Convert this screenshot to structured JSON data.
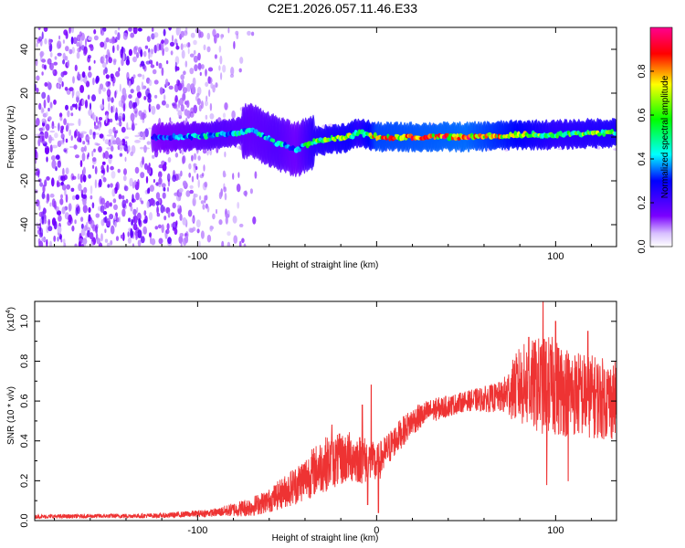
{
  "title": "C2E1.2026.057.11.46.E33",
  "chart_data": [
    {
      "type": "heatmap",
      "title": "C2E1.2026.057.11.46.E33",
      "xlabel": "Height of straight line (km)",
      "ylabel": "Frequency (Hz)",
      "xlim": [
        -191,
        134
      ],
      "ylim": [
        -50,
        50
      ],
      "x_ticks": [
        -100,
        0,
        100
      ],
      "x_tick_labels": [
        "-100",
        "",
        "100"
      ],
      "y_ticks": [
        -40,
        -20,
        0,
        20,
        40
      ],
      "y_tick_labels": [
        "-40",
        "-20",
        "0",
        "20",
        "40"
      ],
      "colorbar": {
        "label": "Normalized spectral amplitude",
        "range": [
          0,
          1
        ],
        "ticks": [
          0.0,
          0.2,
          0.4,
          0.6,
          0.8
        ],
        "tick_labels": [
          "0.0",
          "0.2",
          "0.4",
          "0.6",
          "0.8"
        ],
        "colormap": [
          "#ffffff",
          "#7a00ff",
          "#0000ff",
          "#00ffff",
          "#00ff00",
          "#ffff00",
          "#ff0000",
          "#ff0090"
        ]
      },
      "ridge": [
        {
          "x": -191,
          "f": -2,
          "amp": 0.15
        },
        {
          "x": -140,
          "f": -1,
          "amp": 0.3
        },
        {
          "x": -110,
          "f": 0,
          "amp": 0.45
        },
        {
          "x": -90,
          "f": 1,
          "amp": 0.55
        },
        {
          "x": -70,
          "f": 3,
          "amp": 0.5
        },
        {
          "x": -55,
          "f": -3,
          "amp": 0.55
        },
        {
          "x": -45,
          "f": -6,
          "amp": 0.45
        },
        {
          "x": -35,
          "f": -2,
          "amp": 0.7
        },
        {
          "x": -15,
          "f": 0,
          "amp": 0.8
        },
        {
          "x": -10,
          "f": 2,
          "amp": 0.7
        },
        {
          "x": 0,
          "f": 0,
          "amp": 0.95
        },
        {
          "x": 50,
          "f": 0,
          "amp": 1.0
        },
        {
          "x": 80,
          "f": 1,
          "amp": 0.85
        },
        {
          "x": 100,
          "f": 1,
          "amp": 0.7
        },
        {
          "x": 134,
          "f": 2,
          "amp": 0.75
        }
      ]
    },
    {
      "type": "line",
      "xlabel": "Height of straight line (km)",
      "ylabel": "SNR (10 * v/v)",
      "ylabel_scale": "(x10",
      "ylabel_scale_exp": "4",
      "ylabel_scale_close": ")",
      "xlim": [
        -191,
        134
      ],
      "ylim": [
        0,
        1.1
      ],
      "x_ticks": [
        -100,
        0,
        100
      ],
      "x_tick_labels": [
        "-100",
        "0",
        "100"
      ],
      "y_ticks": [
        0.0,
        0.2,
        0.4,
        0.6,
        0.8,
        1.0
      ],
      "y_tick_labels": [
        "0.0",
        "0.2",
        "0.4",
        "0.6",
        "0.8",
        "1.0"
      ],
      "series": [
        {
          "name": "SNR",
          "color": "#ee3333",
          "trend": [
            {
              "x": -191,
              "y": 0.02,
              "noise": 0.01
            },
            {
              "x": -120,
              "y": 0.025,
              "noise": 0.012
            },
            {
              "x": -90,
              "y": 0.04,
              "noise": 0.02
            },
            {
              "x": -70,
              "y": 0.07,
              "noise": 0.05
            },
            {
              "x": -60,
              "y": 0.1,
              "noise": 0.06
            },
            {
              "x": -45,
              "y": 0.18,
              "noise": 0.1
            },
            {
              "x": -30,
              "y": 0.28,
              "noise": 0.14
            },
            {
              "x": -15,
              "y": 0.32,
              "noise": 0.13
            },
            {
              "x": -5,
              "y": 0.3,
              "noise": 0.12
            },
            {
              "x": 0,
              "y": 0.28,
              "noise": 0.1
            },
            {
              "x": 10,
              "y": 0.4,
              "noise": 0.08
            },
            {
              "x": 20,
              "y": 0.5,
              "noise": 0.07
            },
            {
              "x": 30,
              "y": 0.55,
              "noise": 0.06
            },
            {
              "x": 50,
              "y": 0.6,
              "noise": 0.05
            },
            {
              "x": 70,
              "y": 0.62,
              "noise": 0.08
            },
            {
              "x": 80,
              "y": 0.68,
              "noise": 0.2
            },
            {
              "x": 95,
              "y": 0.68,
              "noise": 0.26
            },
            {
              "x": 110,
              "y": 0.64,
              "noise": 0.22
            },
            {
              "x": 134,
              "y": 0.6,
              "noise": 0.2
            }
          ],
          "spikes": [
            {
              "x": -3,
              "y": 0.68
            },
            {
              "x": -8,
              "y": 0.58
            },
            {
              "x": -25,
              "y": 0.48
            },
            {
              "x": 93,
              "y": 1.1
            },
            {
              "x": 100,
              "y": 1.0
            },
            {
              "x": 118,
              "y": 0.95
            },
            {
              "x": 85,
              "y": 0.92
            }
          ],
          "dips": [
            {
              "x": -5,
              "y": 0.08
            },
            {
              "x": 1,
              "y": 0.04
            },
            {
              "x": 95,
              "y": 0.18
            },
            {
              "x": 107,
              "y": 0.2
            }
          ]
        }
      ]
    }
  ]
}
